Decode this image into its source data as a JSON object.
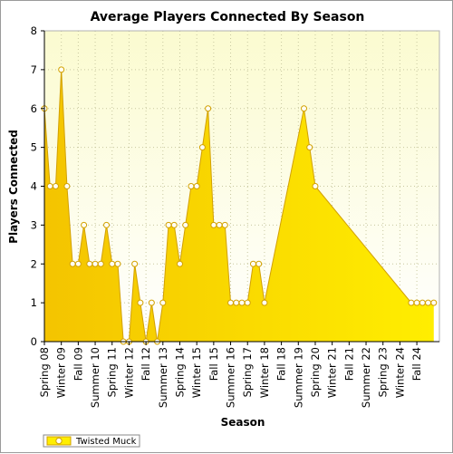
{
  "colors": {
    "fill": "#ffee00",
    "fill_light": "#fffff5",
    "plot_bg_top": "#fbfbd0",
    "plot_bg_bottom": "#ffffff",
    "line": "#d2a000",
    "grid": "#c8c8a0",
    "axis": "#000000"
  },
  "chart_data": {
    "type": "area",
    "title": "Average Players Connected By Season",
    "xlabel": "Season",
    "ylabel": "Players Connected",
    "ylim": [
      0,
      8
    ],
    "yticks": [
      0,
      1,
      2,
      3,
      4,
      5,
      6,
      7,
      8
    ],
    "grid": true,
    "legend_position": "bottom-left",
    "x_tick_labels": [
      "Spring 08",
      "Winter 09",
      "Fall 09",
      "Summer 10",
      "Spring 11",
      "Winter 12",
      "Fall 12",
      "Summer 13",
      "Spring 14",
      "Winter 15",
      "Fall 15",
      "Summer 16",
      "Spring 17",
      "Winter 18",
      "Fall 18",
      "Summer 19",
      "Spring 20",
      "Winter 21",
      "Fall 21",
      "Summer 22",
      "Spring 23",
      "Winter 24",
      "Fall 24"
    ],
    "series": [
      {
        "name": "Twisted Muck",
        "values": [
          6,
          4,
          4,
          7,
          4,
          2,
          2,
          3,
          2,
          2,
          2,
          3,
          2,
          2,
          0,
          0,
          2,
          1,
          0,
          1,
          0,
          1,
          3,
          3,
          2,
          3,
          4,
          4,
          5,
          6,
          3,
          3,
          3,
          1,
          1,
          1,
          1,
          2,
          2,
          1,
          6,
          5,
          4,
          1,
          1,
          1,
          1,
          1
        ],
        "points": [
          [
            0,
            6
          ],
          [
            1,
            4
          ],
          [
            2,
            4
          ],
          [
            3,
            7
          ],
          [
            4,
            4
          ],
          [
            5,
            2
          ],
          [
            6,
            2
          ],
          [
            7,
            3
          ],
          [
            8,
            2
          ],
          [
            9,
            2
          ],
          [
            10,
            2
          ],
          [
            11,
            3
          ],
          [
            12,
            2
          ],
          [
            13,
            2
          ],
          [
            14,
            0
          ],
          [
            15,
            0
          ],
          [
            16,
            2
          ],
          [
            17,
            1
          ],
          [
            18,
            0
          ],
          [
            19,
            1
          ],
          [
            20,
            0
          ],
          [
            21,
            1
          ],
          [
            22,
            3
          ],
          [
            23,
            3
          ],
          [
            24,
            2
          ],
          [
            25,
            3
          ],
          [
            26,
            4
          ],
          [
            27,
            4
          ],
          [
            28,
            5
          ],
          [
            29,
            6
          ],
          [
            30,
            3
          ],
          [
            31,
            3
          ],
          [
            32,
            3
          ],
          [
            33,
            1
          ],
          [
            34,
            1
          ],
          [
            35,
            1
          ],
          [
            36,
            1
          ],
          [
            37,
            2
          ],
          [
            38,
            2
          ],
          [
            39,
            1
          ],
          [
            46,
            6
          ],
          [
            47,
            5
          ],
          [
            48,
            4
          ],
          [
            65,
            1
          ],
          [
            66,
            1
          ],
          [
            67,
            1
          ],
          [
            68,
            1
          ],
          [
            69,
            1
          ]
        ]
      }
    ]
  }
}
